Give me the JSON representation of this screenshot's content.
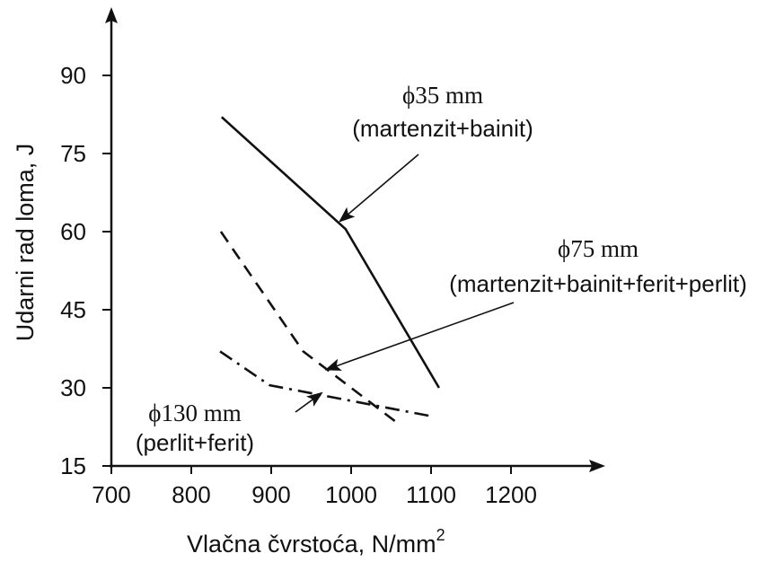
{
  "chart_data": {
    "type": "line",
    "xlabel": "Vlačna čvrstoća, N/mm",
    "xlabel_superscript": "2",
    "ylabel": "Udarni rad loma, J",
    "xlim": [
      700,
      1300
    ],
    "ylim": [
      15,
      100
    ],
    "x_ticks": [
      "700",
      "800",
      "900",
      "1000",
      "1100",
      "1200"
    ],
    "y_ticks": [
      "15",
      "30",
      "45",
      "60",
      "75",
      "90"
    ],
    "x_tick_values": [
      700,
      800,
      900,
      1000,
      1100,
      1200
    ],
    "y_tick_values": [
      15,
      30,
      45,
      60,
      75,
      90
    ],
    "grid": false,
    "series": [
      {
        "name": "ϕ35 mm (martenzit+bainit)",
        "style": "solid",
        "x": [
          838,
          993,
          1110
        ],
        "y": [
          82,
          60.5,
          30
        ]
      },
      {
        "name": "ϕ75 mm (martenzit+bainit+ferit+perlit)",
        "style": "dashed",
        "x": [
          837,
          940,
          1060
        ],
        "y": [
          60,
          37,
          23
        ]
      },
      {
        "name": "ϕ130 mm (perlit+ferit)",
        "style": "dashdot",
        "x": [
          836,
          898,
          1000,
          1102
        ],
        "y": [
          37,
          30.5,
          27.5,
          24.5
        ]
      }
    ],
    "annotations": [
      {
        "line1": "ϕ35 mm",
        "line2": "(martenzit+bainit)",
        "points_to": [
          986,
          62
        ]
      },
      {
        "line1": "ϕ75 mm",
        "line2": "(martenzit+bainit+ferit+perlit)",
        "points_to": [
          969,
          33.5
        ]
      },
      {
        "line1": "ϕ130 mm",
        "line2": "(perlit+ferit)",
        "points_to": [
          963,
          29
        ]
      }
    ]
  }
}
